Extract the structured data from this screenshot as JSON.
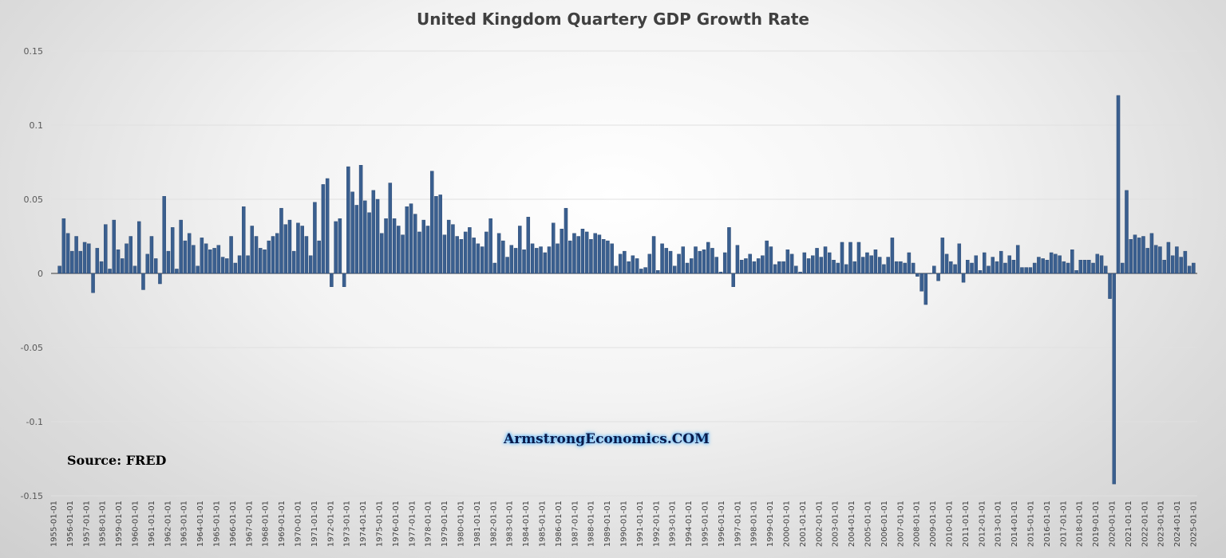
{
  "chart_data": {
    "type": "bar",
    "title": "United Kingdom Quartery GDP Growth Rate",
    "xlabel": "",
    "ylabel": "",
    "ylim": [
      -0.15,
      0.15
    ],
    "yticks": [
      "0.15",
      "0.1",
      "0.05",
      "0",
      "-0.05",
      "-0.1",
      "-0.15"
    ],
    "grid": true,
    "series": [
      {
        "values": [
          0.005,
          0.037,
          0.027,
          0.015,
          0.025,
          0.015,
          0.021,
          0.02,
          -0.013,
          0.017,
          0.008,
          0.033,
          0.003,
          0.036,
          0.016,
          0.01,
          0.02,
          0.025,
          0.005,
          0.035,
          -0.011,
          0.013,
          0.025,
          0.01,
          -0.007,
          0.052,
          0.015,
          0.031,
          0.003,
          0.036,
          0.022,
          0.027,
          0.019,
          0.005,
          0.024,
          0.02,
          0.016,
          0.017,
          0.019,
          0.011,
          0.01,
          0.025,
          0.007,
          0.012,
          0.045,
          0.012,
          0.032,
          0.025,
          0.017,
          0.016,
          0.022,
          0.025,
          0.027,
          0.044,
          0.033,
          0.036,
          0.015,
          0.034,
          0.032,
          0.025,
          0.012,
          0.048,
          0.022,
          0.06,
          0.064,
          -0.009,
          0.035,
          0.037,
          -0.009,
          0.072,
          0.055,
          0.046,
          0.073,
          0.049,
          0.041,
          0.056,
          0.05,
          0.027,
          0.037,
          0.061,
          0.037,
          0.032,
          0.026,
          0.045,
          0.047,
          0.04,
          0.028,
          0.036,
          0.032,
          0.069,
          0.052,
          0.053,
          0.026,
          0.036,
          0.033,
          0.025,
          0.023,
          0.028,
          0.031,
          0.024,
          0.02,
          0.018,
          0.028,
          0.037,
          0.007,
          0.027,
          0.022,
          0.011,
          0.019,
          0.017,
          0.032,
          0.016,
          0.038,
          0.02,
          0.017,
          0.018,
          0.014,
          0.018,
          0.034,
          0.02,
          0.03,
          0.044,
          0.022,
          0.027,
          0.025,
          0.03,
          0.028,
          0.023,
          0.027,
          0.026,
          0.023,
          0.022,
          0.02,
          0.005,
          0.013,
          0.015,
          0.008,
          0.012,
          0.01,
          0.003,
          0.004,
          0.013,
          0.025,
          0.002,
          0.02,
          0.017,
          0.015,
          0.005,
          0.013,
          0.018,
          0.007,
          0.01,
          0.018,
          0.015,
          0.016,
          0.021,
          0.017,
          0.011,
          0.001,
          0.014,
          0.031,
          -0.009,
          0.019,
          0.009,
          0.01,
          0.013,
          0.008,
          0.01,
          0.012,
          0.022,
          0.018,
          0.006,
          0.008,
          0.008,
          0.016,
          0.013,
          0.005,
          0.001,
          0.014,
          0.01,
          0.012,
          0.017,
          0.011,
          0.018,
          0.014,
          0.009,
          0.007,
          0.021,
          0.006,
          0.021,
          0.008,
          0.021,
          0.011,
          0.014,
          0.012,
          0.016,
          0.011,
          0.006,
          0.011,
          0.024,
          0.008,
          0.008,
          0.007,
          0.014,
          0.007,
          -0.002,
          -0.012,
          -0.021,
          0.0,
          0.005,
          -0.005,
          0.024,
          0.013,
          0.008,
          0.006,
          0.02,
          -0.006,
          0.009,
          0.007,
          0.012,
          0.002,
          0.014,
          0.005,
          0.011,
          0.008,
          0.015,
          0.007,
          0.012,
          0.009,
          0.019,
          0.004,
          0.004,
          0.004,
          0.007,
          0.011,
          0.01,
          0.009,
          0.014,
          0.013,
          0.012,
          0.008,
          0.007,
          0.016,
          0.002,
          0.009,
          0.009,
          0.009,
          0.007,
          0.013,
          0.012,
          0.005,
          -0.017,
          -0.142,
          0.12,
          0.007,
          0.056,
          0.023,
          0.026,
          0.024,
          0.025,
          0.017,
          0.027,
          0.019,
          0.018,
          0.009,
          0.021,
          0.012,
          0.018,
          0.011,
          0.015,
          0.005,
          0.007
        ]
      }
    ],
    "x_labels": [
      "1955-01-01",
      "1956-01-01",
      "1957-01-01",
      "1958-01-01",
      "1959-01-01",
      "1960-01-01",
      "1961-01-01",
      "1962-01-01",
      "1963-01-01",
      "1964-01-01",
      "1965-01-01",
      "1966-01-01",
      "1967-01-01",
      "1968-01-01",
      "1969-01-01",
      "1970-01-01",
      "1971-01-01",
      "1972-01-01",
      "1973-01-01",
      "1974-01-01",
      "1975-01-01",
      "1976-01-01",
      "1977-01-01",
      "1978-01-01",
      "1979-01-01",
      "1980-01-01",
      "1981-01-01",
      "1982-01-01",
      "1983-01-01",
      "1984-01-01",
      "1985-01-01",
      "1986-01-01",
      "1987-01-01",
      "1988-01-01",
      "1989-01-01",
      "1990-01-01",
      "1991-01-01",
      "1992-01-01",
      "1993-01-01",
      "1994-01-01",
      "1995-01-01",
      "1996-01-01",
      "1997-01-01",
      "1998-01-01",
      "1999-01-01",
      "2000-01-01",
      "2001-01-01",
      "2002-01-01",
      "2003-01-01",
      "2004-01-01",
      "2005-01-01",
      "2006-01-01",
      "2007-01-01",
      "2008-01-01",
      "2009-01-01",
      "2010-01-01",
      "2011-01-01",
      "2012-01-01",
      "2013-01-01",
      "2014-01-01",
      "2015-01-01",
      "2016-01-01",
      "2017-01-01",
      "2018-01-01",
      "2019-01-01",
      "2020-01-01",
      "2021-01-01",
      "2022-01-01",
      "2023-01-01",
      "2024-01-01",
      "2025-01-01"
    ],
    "bar_color": "#3a5f8f",
    "bar_edge_color": "#23406a"
  },
  "annotations": {
    "source": "Source: FRED",
    "watermark": "ArmstrongEconomics.COM"
  }
}
